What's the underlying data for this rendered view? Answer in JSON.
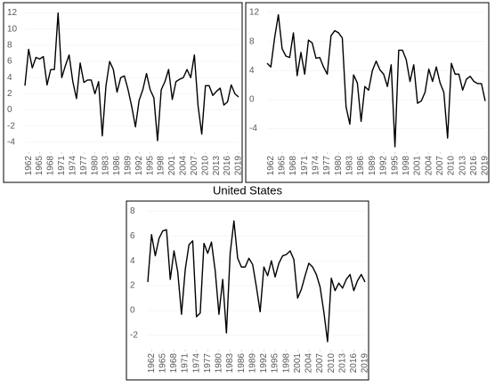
{
  "chart_data": [
    {
      "type": "line",
      "color": "#000000",
      "x": [
        1961,
        1962,
        1963,
        1964,
        1965,
        1966,
        1967,
        1968,
        1969,
        1970,
        1971,
        1972,
        1973,
        1974,
        1975,
        1976,
        1977,
        1978,
        1979,
        1980,
        1981,
        1982,
        1983,
        1984,
        1985,
        1986,
        1987,
        1988,
        1989,
        1990,
        1991,
        1992,
        1993,
        1994,
        1995,
        1996,
        1997,
        1998,
        1999,
        2000,
        2001,
        2002,
        2003,
        2004,
        2005,
        2006,
        2007,
        2008,
        2009,
        2010,
        2011,
        2012,
        2013,
        2014,
        2015,
        2016,
        2017,
        2018,
        2019
      ],
      "values": [
        3,
        7.5,
        5.2,
        6.5,
        6.3,
        6.6,
        3.1,
        5,
        5,
        12,
        4,
        5.5,
        6.8,
        3.5,
        1.4,
        5.8,
        3.4,
        3.7,
        3.7,
        2,
        3.5,
        -3.2,
        3,
        6,
        5,
        2.2,
        4,
        4.2,
        2.5,
        0.4,
        -2.1,
        1.2,
        2.5,
        4.5,
        2.5,
        1.5,
        -3.8,
        2.5,
        3.5,
        5,
        1.3,
        3.5,
        3.8,
        4,
        5,
        4,
        6.8,
        0.5,
        -3,
        3,
        3,
        1.8,
        2.3,
        2.7,
        0.6,
        1,
        3.1,
        2,
        1.6
      ],
      "xlim": [
        1961,
        2019
      ],
      "xticks": [
        1962,
        1965,
        1968,
        1971,
        1974,
        1977,
        1980,
        1983,
        1986,
        1989,
        1992,
        1995,
        1998,
        2001,
        2004,
        2007,
        2010,
        2013,
        2016,
        2019
      ],
      "ylim": [
        -5,
        12.5
      ],
      "yticks": [
        -4,
        -2,
        0,
        2,
        4,
        6,
        8,
        10,
        12
      ]
    },
    {
      "type": "line",
      "color": "#000000",
      "x": [
        1961,
        1962,
        1963,
        1964,
        1965,
        1966,
        1967,
        1968,
        1969,
        1970,
        1971,
        1972,
        1973,
        1974,
        1975,
        1976,
        1977,
        1978,
        1979,
        1980,
        1981,
        1982,
        1983,
        1984,
        1985,
        1986,
        1987,
        1988,
        1989,
        1990,
        1991,
        1992,
        1993,
        1994,
        1995,
        1996,
        1997,
        1998,
        1999,
        2000,
        2001,
        2002,
        2003,
        2004,
        2005,
        2006,
        2007,
        2008,
        2009,
        2010,
        2011,
        2012,
        2013,
        2014,
        2015,
        2016,
        2017,
        2018,
        2019
      ],
      "values": [
        5,
        4.5,
        8.5,
        11.7,
        7,
        6,
        5.8,
        9.2,
        3.3,
        6.5,
        3.5,
        8.2,
        7.8,
        5.7,
        5.8,
        4.5,
        3.5,
        8.8,
        9.5,
        9.2,
        8.5,
        -1,
        -3.4,
        3.4,
        2.3,
        -3,
        1.8,
        1.3,
        4,
        5.3,
        4.1,
        3.5,
        1.8,
        4.8,
        -6.5,
        6.8,
        6.8,
        5.5,
        2.5,
        4.8,
        -0.5,
        -0.2,
        1,
        4.2,
        2.5,
        4.5,
        2.3,
        1,
        -5.3,
        5,
        3.5,
        3.5,
        1.3,
        2.8,
        3.2,
        2.5,
        2.2,
        2.2,
        -0.2
      ],
      "xlim": [
        1961,
        2019
      ],
      "xticks": [
        1962,
        1965,
        1968,
        1971,
        1974,
        1977,
        1980,
        1983,
        1986,
        1989,
        1992,
        1995,
        1998,
        2001,
        2004,
        2007,
        2010,
        2013,
        2016,
        2019
      ],
      "ylim": [
        -7,
        12.5
      ],
      "yticks": [
        -4,
        0,
        4,
        8,
        12
      ]
    },
    {
      "type": "line",
      "title": "United States",
      "color": "#000000",
      "x": [
        1961,
        1962,
        1963,
        1964,
        1965,
        1966,
        1967,
        1968,
        1969,
        1970,
        1971,
        1972,
        1973,
        1974,
        1975,
        1976,
        1977,
        1978,
        1979,
        1980,
        1981,
        1982,
        1983,
        1984,
        1985,
        1986,
        1987,
        1988,
        1989,
        1990,
        1991,
        1992,
        1993,
        1994,
        1995,
        1996,
        1997,
        1998,
        1999,
        2000,
        2001,
        2002,
        2003,
        2004,
        2005,
        2006,
        2007,
        2008,
        2009,
        2010,
        2011,
        2012,
        2013,
        2014,
        2015,
        2016,
        2017,
        2018,
        2019
      ],
      "values": [
        2.3,
        6.1,
        4.4,
        5.8,
        6.4,
        6.5,
        2.5,
        4.8,
        3.1,
        -0.3,
        3.3,
        5.3,
        5.6,
        -0.5,
        -0.2,
        5.4,
        4.6,
        5.5,
        3.2,
        -0.3,
        2.5,
        -1.8,
        4.6,
        7.2,
        4.2,
        3.5,
        3.5,
        4.2,
        3.7,
        1.9,
        -0.1,
        3.5,
        2.8,
        4,
        2.7,
        3.8,
        4.4,
        4.5,
        4.8,
        4.1,
        1,
        1.7,
        2.8,
        3.8,
        3.5,
        2.9,
        1.9,
        -0.1,
        -2.5,
        2.6,
        1.6,
        2.2,
        1.8,
        2.5,
        2.9,
        1.6,
        2.4,
        2.9,
        2.3
      ],
      "xlim": [
        1961,
        2019
      ],
      "xticks": [
        1962,
        1965,
        1968,
        1971,
        1974,
        1977,
        1980,
        1983,
        1986,
        1989,
        1992,
        1995,
        1998,
        2001,
        2004,
        2007,
        2010,
        2013,
        2016,
        2019
      ],
      "ylim": [
        -3,
        8.3
      ],
      "yticks": [
        -2,
        0,
        2,
        4,
        6,
        8
      ]
    }
  ]
}
